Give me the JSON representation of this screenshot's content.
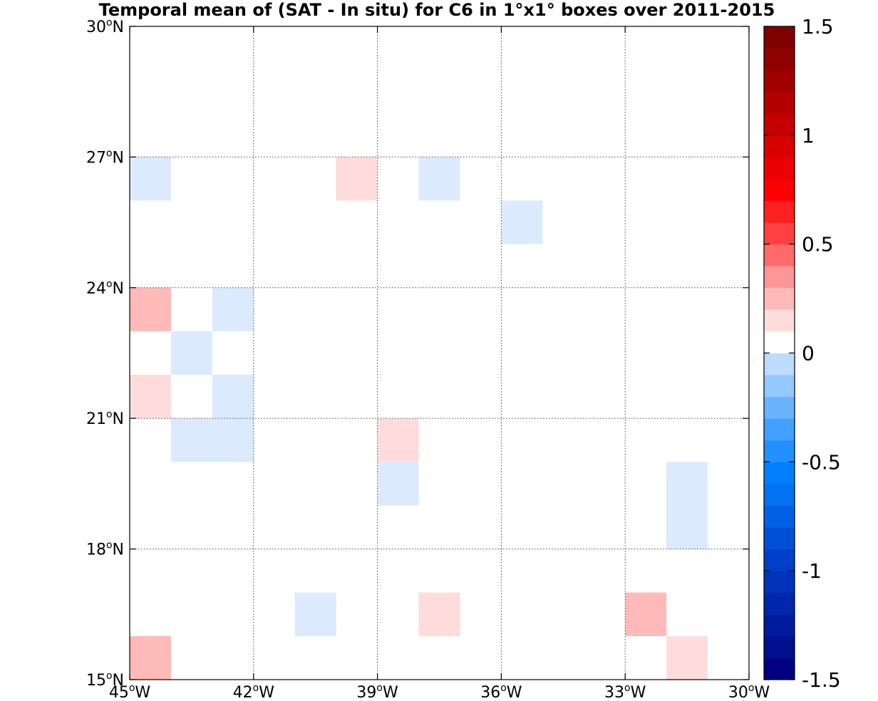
{
  "chart_data": {
    "type": "heatmap",
    "title": "Temporal mean of (SAT - In situ) for C6 in 1°x1° boxes over 2011-2015",
    "xlabel": "",
    "ylabel": "",
    "xlim": [
      -45,
      -30
    ],
    "ylim": [
      15,
      30
    ],
    "x_ticks": [
      {
        "value": -45,
        "label": "45",
        "sup": "o",
        "hemi": "W"
      },
      {
        "value": -42,
        "label": "42",
        "sup": "o",
        "hemi": "W"
      },
      {
        "value": -39,
        "label": "39",
        "sup": "o",
        "hemi": "W"
      },
      {
        "value": -36,
        "label": "36",
        "sup": "o",
        "hemi": "W"
      },
      {
        "value": -33,
        "label": "33",
        "sup": "o",
        "hemi": "W"
      },
      {
        "value": -30,
        "label": "30",
        "sup": "o",
        "hemi": "W"
      }
    ],
    "y_ticks": [
      {
        "value": 15,
        "label": "15",
        "sup": "o",
        "hemi": "N"
      },
      {
        "value": 18,
        "label": "18",
        "sup": "o",
        "hemi": "N"
      },
      {
        "value": 21,
        "label": "21",
        "sup": "o",
        "hemi": "N"
      },
      {
        "value": 24,
        "label": "24",
        "sup": "o",
        "hemi": "N"
      },
      {
        "value": 27,
        "label": "27",
        "sup": "o",
        "hemi": "N"
      },
      {
        "value": 30,
        "label": "30",
        "sup": "o",
        "hemi": "N"
      }
    ],
    "grid": true,
    "colorbar": {
      "location": "right",
      "vmin": -1.5,
      "vmax": 1.5,
      "levels": 30,
      "ticks": [
        {
          "value": 1.5,
          "label": "1.5"
        },
        {
          "value": 1,
          "label": "1"
        },
        {
          "value": 0.5,
          "label": "0.5"
        },
        {
          "value": 0,
          "label": "0"
        },
        {
          "value": -0.5,
          "label": "-0.5"
        },
        {
          "value": -1,
          "label": "-1"
        },
        {
          "value": -1.5,
          "label": "-1.5"
        }
      ],
      "colors": [
        "#000080",
        "#000f8e",
        "#001b9d",
        "#0027ab",
        "#0033ba",
        "#0040c8",
        "#004fd7",
        "#0061e5",
        "#0072f2",
        "#0080ff",
        "#2290ff",
        "#44a0ff",
        "#6ab3ff",
        "#94c9ff",
        "#bbdcff",
        "#ffffff",
        "#ffdcdc",
        "#ffb9b9",
        "#ff9696",
        "#ff6a6a",
        "#ff4040",
        "#ff2020",
        "#ff0000",
        "#ea0000",
        "#d80000",
        "#c40000",
        "#b30000",
        "#a10000",
        "#900000",
        "#800000"
      ]
    },
    "cells": [
      {
        "lon": -44.5,
        "lat": 26.5,
        "value": -0.1,
        "color": "#dbeafe"
      },
      {
        "lon": -39.5,
        "lat": 26.5,
        "value": 0.1,
        "color": "#fedcdc"
      },
      {
        "lon": -37.5,
        "lat": 26.5,
        "value": -0.1,
        "color": "#dbeafe"
      },
      {
        "lon": -35.5,
        "lat": 25.5,
        "value": -0.1,
        "color": "#dbeafe"
      },
      {
        "lon": -44.5,
        "lat": 23.5,
        "value": 0.2,
        "color": "#feb9b9"
      },
      {
        "lon": -42.5,
        "lat": 23.5,
        "value": -0.1,
        "color": "#dbeafe"
      },
      {
        "lon": -43.5,
        "lat": 22.5,
        "value": -0.1,
        "color": "#dbeafe"
      },
      {
        "lon": -44.5,
        "lat": 21.5,
        "value": 0.1,
        "color": "#fedcdc"
      },
      {
        "lon": -42.5,
        "lat": 21.5,
        "value": -0.1,
        "color": "#dbeafe"
      },
      {
        "lon": -43.5,
        "lat": 20.5,
        "value": -0.1,
        "color": "#dbeafe"
      },
      {
        "lon": -42.5,
        "lat": 20.5,
        "value": -0.1,
        "color": "#dbeafe"
      },
      {
        "lon": -38.5,
        "lat": 20.5,
        "value": 0.1,
        "color": "#fedcdc"
      },
      {
        "lon": -38.5,
        "lat": 19.5,
        "value": -0.1,
        "color": "#dbeafe"
      },
      {
        "lon": -31.5,
        "lat": 19.5,
        "value": -0.1,
        "color": "#dbeafe"
      },
      {
        "lon": -31.5,
        "lat": 18.5,
        "value": -0.1,
        "color": "#dbeafe"
      },
      {
        "lon": -40.5,
        "lat": 16.5,
        "value": -0.1,
        "color": "#dbeafe"
      },
      {
        "lon": -37.5,
        "lat": 16.5,
        "value": 0.1,
        "color": "#fedcdc"
      },
      {
        "lon": -32.5,
        "lat": 16.5,
        "value": 0.2,
        "color": "#feb9b9"
      },
      {
        "lon": -44.5,
        "lat": 15.5,
        "value": 0.2,
        "color": "#feb9b9"
      },
      {
        "lon": -31.5,
        "lat": 15.5,
        "value": 0.1,
        "color": "#fedcdc"
      }
    ]
  }
}
